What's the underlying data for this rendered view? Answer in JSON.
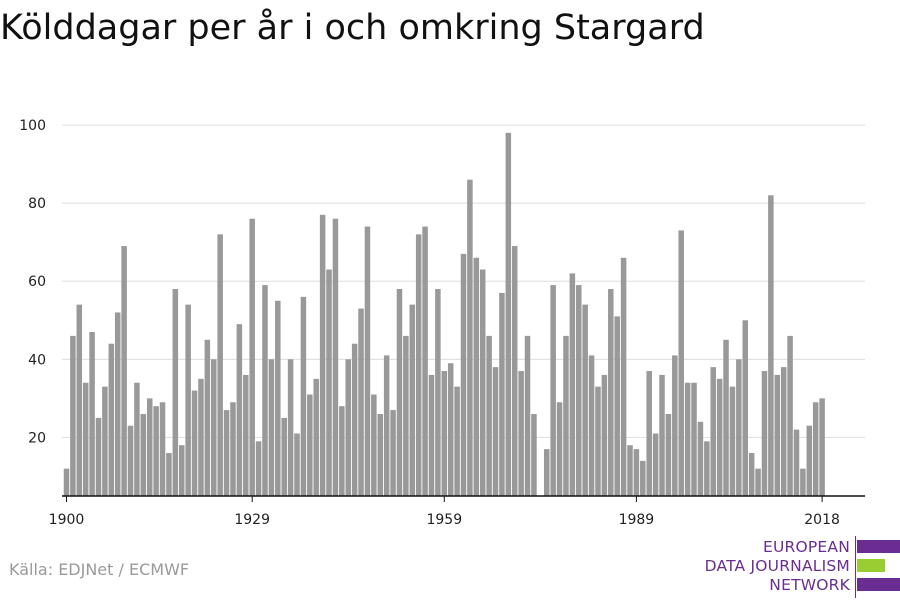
{
  "title": "Kölddagar per år i och omkring Stargard",
  "source": "Källa: EDJNet / ECMWF",
  "logo": {
    "lines": [
      "EUROPEAN",
      "DATA JOURNALISM",
      "NETWORK"
    ],
    "colors": {
      "purple": "#6a2e92",
      "green": "#9acd32"
    }
  },
  "chart_data": {
    "type": "bar",
    "title": "Kölddagar per år i och omkring Stargard",
    "xlabel": "",
    "ylabel": "",
    "bar_color": "#999999",
    "grid": true,
    "xlim": [
      1899.3,
      2024.7
    ],
    "ylim": [
      5,
      100
    ],
    "x_ticks": [
      1900,
      1929,
      1959,
      1989,
      2018
    ],
    "y_ticks": [
      20,
      40,
      60,
      80,
      100
    ],
    "start_year": 1900,
    "x": [
      1900,
      1901,
      1902,
      1903,
      1904,
      1905,
      1906,
      1907,
      1908,
      1909,
      1910,
      1911,
      1912,
      1913,
      1914,
      1915,
      1916,
      1917,
      1918,
      1919,
      1920,
      1921,
      1922,
      1923,
      1924,
      1925,
      1926,
      1927,
      1928,
      1929,
      1930,
      1931,
      1932,
      1933,
      1934,
      1935,
      1936,
      1937,
      1938,
      1939,
      1940,
      1941,
      1942,
      1943,
      1944,
      1945,
      1946,
      1947,
      1948,
      1949,
      1950,
      1951,
      1952,
      1953,
      1954,
      1955,
      1956,
      1957,
      1958,
      1959,
      1960,
      1961,
      1962,
      1963,
      1964,
      1965,
      1966,
      1967,
      1968,
      1969,
      1970,
      1971,
      1972,
      1973,
      1974,
      1975,
      1976,
      1977,
      1978,
      1979,
      1980,
      1981,
      1982,
      1983,
      1984,
      1985,
      1986,
      1987,
      1988,
      1989,
      1990,
      1991,
      1992,
      1993,
      1994,
      1995,
      1996,
      1997,
      1998,
      1999,
      2000,
      2001,
      2002,
      2003,
      2004,
      2005,
      2006,
      2007,
      2008,
      2009,
      2010,
      2011,
      2012,
      2013,
      2014,
      2015,
      2016,
      2017,
      2018
    ],
    "values": [
      12,
      46,
      54,
      34,
      47,
      25,
      33,
      44,
      52,
      69,
      23,
      34,
      26,
      30,
      28,
      29,
      16,
      58,
      18,
      54,
      32,
      35,
      45,
      40,
      72,
      27,
      29,
      49,
      36,
      76,
      19,
      59,
      40,
      55,
      25,
      40,
      21,
      56,
      31,
      35,
      77,
      63,
      76,
      28,
      40,
      44,
      53,
      74,
      31,
      26,
      41,
      27,
      58,
      46,
      54,
      72,
      74,
      36,
      58,
      37,
      39,
      33,
      67,
      86,
      66,
      63,
      46,
      38,
      57,
      98,
      69,
      37,
      46,
      26,
      5,
      17,
      59,
      29,
      46,
      62,
      59,
      54,
      41,
      33,
      36,
      58,
      51,
      66,
      18,
      17,
      14,
      37,
      21,
      36,
      26,
      41,
      73,
      34,
      34,
      24,
      19,
      38,
      35,
      45,
      33,
      40,
      50,
      16,
      12,
      37,
      82,
      36,
      38,
      46,
      22,
      12,
      23,
      29,
      30
    ]
  }
}
